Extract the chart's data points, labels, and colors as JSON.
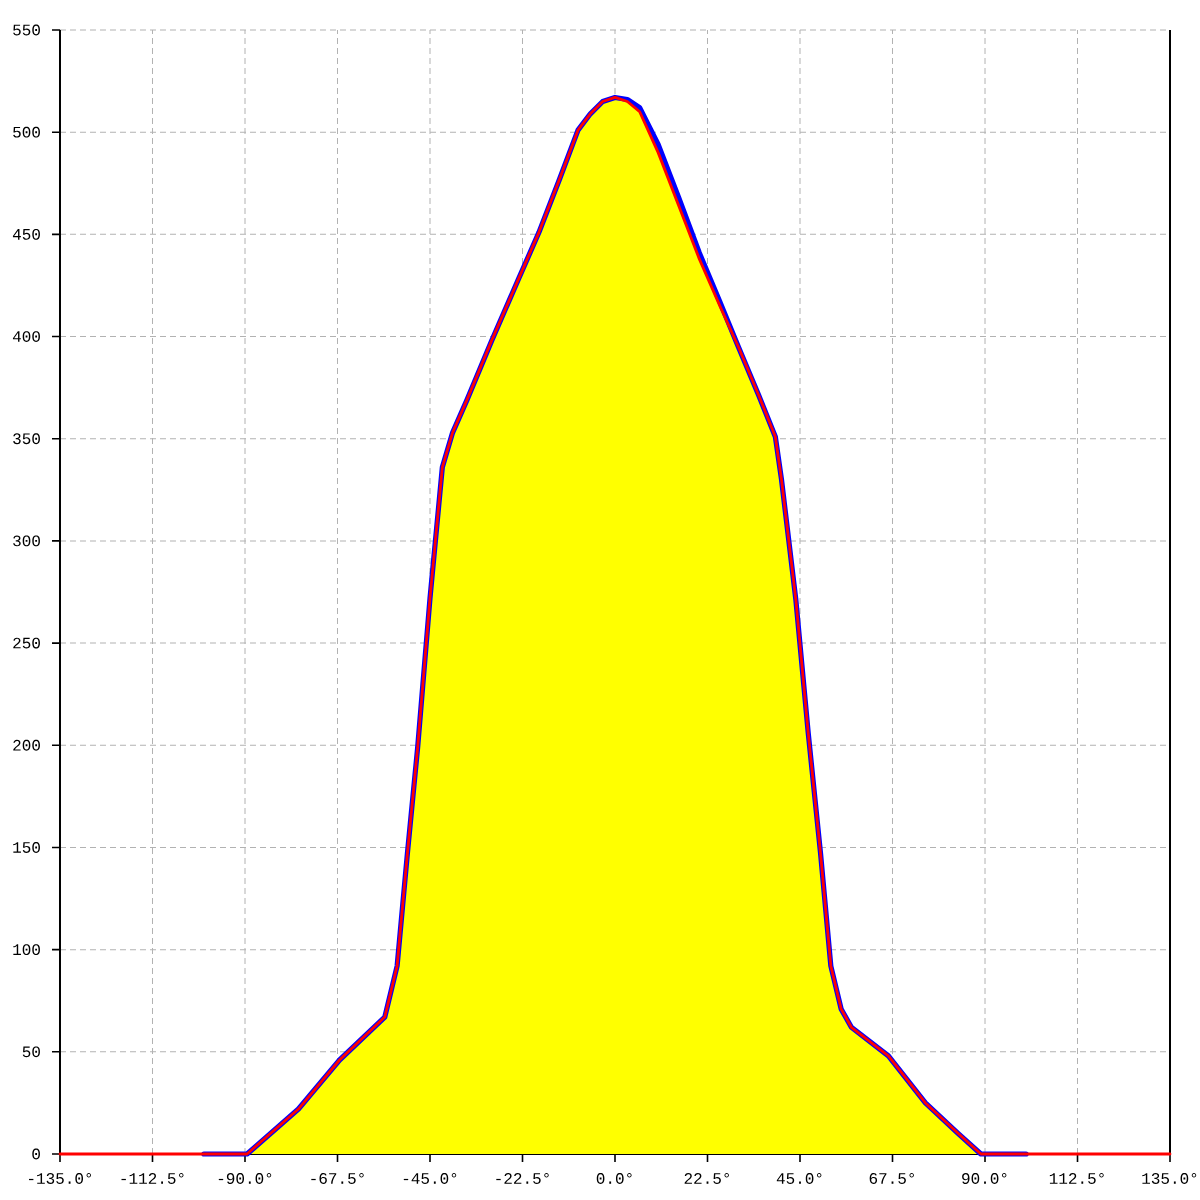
{
  "chart_data": {
    "type": "line",
    "x": [
      -135,
      -100,
      -89.5,
      -77,
      -67,
      -56,
      -53,
      -50.5,
      -48,
      -45,
      -42,
      -39.5,
      -36,
      -30,
      -23.5,
      -18.5,
      -13.5,
      -9,
      -6,
      -3,
      0,
      3,
      6,
      10.5,
      15.5,
      20.5,
      25.5,
      30,
      35,
      39,
      40.5,
      44,
      47,
      50,
      52.5,
      55,
      57.5,
      66.5,
      75.5,
      83.5,
      89,
      100,
      135
    ],
    "xlim": [
      -135,
      135
    ],
    "ylim": [
      0,
      550
    ],
    "xticks": [
      {
        "value": -135,
        "label": "-135.0°"
      },
      {
        "value": -112.5,
        "label": "-112.5°"
      },
      {
        "value": -90,
        "label": "-90.0°"
      },
      {
        "value": -67.5,
        "label": "-67.5°"
      },
      {
        "value": -45,
        "label": "-45.0°"
      },
      {
        "value": -22.5,
        "label": "-22.5°"
      },
      {
        "value": 0,
        "label": "0.0°"
      },
      {
        "value": 22.5,
        "label": "22.5°"
      },
      {
        "value": 45,
        "label": "45.0°"
      },
      {
        "value": 67.5,
        "label": "67.5°"
      },
      {
        "value": 90,
        "label": "90.0°"
      },
      {
        "value": 112.5,
        "label": "112.5°"
      },
      {
        "value": 135,
        "label": "135.0°"
      }
    ],
    "yticks": [
      0,
      50,
      100,
      150,
      200,
      250,
      300,
      350,
      400,
      450,
      500,
      550
    ],
    "grid": true,
    "series": [
      {
        "type": "area",
        "color": "#ffff00",
        "x": [
          -89.5,
          -77,
          -67,
          -56,
          -53,
          -50.5,
          -48,
          -45,
          -42,
          -39.5,
          -36,
          -30,
          -23.5,
          -18.5,
          -13.5,
          -9,
          -6,
          -3,
          0,
          3,
          6,
          10.5,
          15.5,
          20.5,
          25.5,
          30,
          35,
          39,
          40.5,
          44,
          47,
          50,
          52.5,
          55,
          57.5,
          66.5,
          75.5,
          83.5,
          89
        ],
        "values": [
          0,
          22,
          46,
          67,
          92,
          147,
          199,
          272,
          336,
          353,
          369,
          398,
          428,
          451,
          477,
          501,
          509,
          515,
          517,
          515,
          510,
          490,
          464,
          438,
          415,
          395,
          371,
          351,
          330,
          271,
          206,
          147,
          92,
          71,
          62,
          48,
          25,
          10,
          0
        ]
      },
      {
        "color": "#0000ff",
        "x": [
          -100,
          -89.5,
          -77,
          -67,
          -56,
          -53,
          -50.5,
          -48,
          -45,
          -42,
          -39.5,
          -36,
          -30,
          -23.5,
          -18.5,
          -13.5,
          -9,
          -6,
          -3,
          0,
          3,
          6,
          10.5,
          15.5,
          20.5,
          25.5,
          30,
          35,
          39,
          40.5,
          44,
          47,
          50,
          52.5,
          55,
          57.5,
          66.5,
          75.5,
          83.5,
          89,
          100
        ],
        "values": [
          0,
          0,
          22,
          46,
          67,
          92,
          147,
          199,
          272,
          336,
          353,
          369,
          398,
          428,
          451,
          477,
          501,
          509,
          515,
          517,
          516,
          512,
          494,
          468,
          441,
          417,
          395,
          371,
          351,
          330,
          271,
          206,
          147,
          92,
          71,
          62,
          48,
          25,
          10,
          0,
          0
        ]
      },
      {
        "color": "#ff0000",
        "values": [
          0,
          0,
          0,
          22,
          46,
          67,
          92,
          147,
          199,
          272,
          336,
          353,
          369,
          398,
          428,
          451,
          477,
          501,
          509,
          515,
          517,
          515,
          510,
          490,
          464,
          438,
          415,
          395,
          371,
          351,
          330,
          271,
          206,
          147,
          92,
          71,
          62,
          48,
          25,
          10,
          0,
          0,
          0
        ]
      }
    ]
  }
}
